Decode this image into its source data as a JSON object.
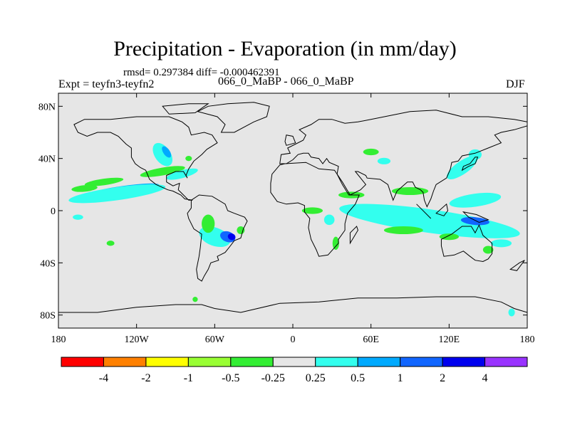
{
  "title": "Precipitation - Evaporation (in mm/day)",
  "stats": "rmsd= 0.297384 diff= -0.000462391",
  "expt": "Expt = teyfn3-teyfn2",
  "case": "066_0_MaBP - 066_0_MaBP",
  "season": "DJF",
  "map": {
    "lon_range": [
      -180,
      180
    ],
    "lat_range": [
      -90,
      90
    ],
    "background": "#e6e6e6",
    "land_outline_color": "#000000",
    "x_ticks": [
      {
        "value": -180,
        "label": "180"
      },
      {
        "value": -120,
        "label": "120W"
      },
      {
        "value": -60,
        "label": "60W"
      },
      {
        "value": 0,
        "label": "0"
      },
      {
        "value": 60,
        "label": "60E"
      },
      {
        "value": 120,
        "label": "120E"
      },
      {
        "value": 180,
        "label": "180"
      }
    ],
    "y_ticks": [
      {
        "value": 80,
        "label": "80N"
      },
      {
        "value": 40,
        "label": "40N"
      },
      {
        "value": 0,
        "label": "0"
      },
      {
        "value": -40,
        "label": "40S"
      },
      {
        "value": -80,
        "label": "80S"
      }
    ]
  },
  "colorbar": {
    "colors": [
      "#ff0000",
      "#ff8000",
      "#ffff00",
      "#99ff33",
      "#33ee33",
      "#e6e6e6",
      "#33ffee",
      "#00aaff",
      "#1166ff",
      "#0000ee",
      "#9933ff"
    ],
    "labels": [
      "-4",
      "-2",
      "-1",
      "-0.5",
      "-0.25",
      "0.25",
      "0.5",
      "1",
      "2",
      "4"
    ]
  },
  "features": [
    {
      "c": "#33ffee",
      "lon": -100,
      "lat": 43,
      "w": 12,
      "h": 20,
      "r": -35
    },
    {
      "c": "#00aaff",
      "lon": -97,
      "lat": 45,
      "w": 5,
      "h": 10,
      "r": -35
    },
    {
      "c": "#33ee33",
      "lon": -145,
      "lat": 22,
      "w": 30,
      "h": 5,
      "r": -8
    },
    {
      "c": "#00aaff",
      "lon": -130,
      "lat": 16,
      "w": 55,
      "h": 6,
      "r": -8
    },
    {
      "c": "#33ffee",
      "lon": -135,
      "lat": 13,
      "w": 75,
      "h": 10,
      "r": -8
    },
    {
      "c": "#33ee33",
      "lon": -160,
      "lat": 17,
      "w": 20,
      "h": 5,
      "r": -5
    },
    {
      "c": "#33ee33",
      "lon": -100,
      "lat": 30,
      "w": 35,
      "h": 6,
      "r": -10
    },
    {
      "c": "#33ffee",
      "lon": -85,
      "lat": 28,
      "w": 25,
      "h": 6,
      "r": -15
    },
    {
      "c": "#33ee33",
      "lon": -80,
      "lat": 40,
      "w": 5,
      "h": 4,
      "r": 0
    },
    {
      "c": "#33ffee",
      "lon": -60,
      "lat": -20,
      "w": 25,
      "h": 14,
      "r": 20
    },
    {
      "c": "#1166ff",
      "lon": -50,
      "lat": -20,
      "w": 12,
      "h": 8,
      "r": 20
    },
    {
      "c": "#0000ee",
      "lon": -47,
      "lat": -20,
      "w": 6,
      "h": 5,
      "r": 20
    },
    {
      "c": "#33ee33",
      "lon": -65,
      "lat": -10,
      "w": 10,
      "h": 14,
      "r": 0
    },
    {
      "c": "#33ee33",
      "lon": -40,
      "lat": -15,
      "w": 6,
      "h": 6,
      "r": 0
    },
    {
      "c": "#33ee33",
      "lon": 15,
      "lat": 0,
      "w": 16,
      "h": 5,
      "r": 0
    },
    {
      "c": "#33ffee",
      "lon": 28,
      "lat": -7,
      "w": 8,
      "h": 8,
      "r": 0
    },
    {
      "c": "#33ee33",
      "lon": 33,
      "lat": -25,
      "w": 5,
      "h": 10,
      "r": 0
    },
    {
      "c": "#00aaff",
      "lon": 100,
      "lat": -5,
      "w": 110,
      "h": 10,
      "r": 8
    },
    {
      "c": "#33ffee",
      "lon": 105,
      "lat": -8,
      "w": 140,
      "h": 18,
      "r": 8
    },
    {
      "c": "#1166ff",
      "lon": 140,
      "lat": -8,
      "w": 22,
      "h": 6,
      "r": 5
    },
    {
      "c": "#33ffee",
      "lon": 140,
      "lat": 8,
      "w": 40,
      "h": 10,
      "r": -8
    },
    {
      "c": "#33ee33",
      "lon": 90,
      "lat": 15,
      "w": 28,
      "h": 6,
      "r": 0
    },
    {
      "c": "#33ee33",
      "lon": 45,
      "lat": 12,
      "w": 20,
      "h": 5,
      "r": 0
    },
    {
      "c": "#33ee33",
      "lon": 85,
      "lat": -15,
      "w": 30,
      "h": 6,
      "r": 0
    },
    {
      "c": "#33ffee",
      "lon": 130,
      "lat": 33,
      "w": 28,
      "h": 10,
      "r": -35
    },
    {
      "c": "#33ffee",
      "lon": 140,
      "lat": 43,
      "w": 10,
      "h": 8,
      "r": 0
    },
    {
      "c": "#33ffee",
      "lon": 160,
      "lat": -25,
      "w": 16,
      "h": 6,
      "r": 0
    },
    {
      "c": "#33ee33",
      "lon": 120,
      "lat": -20,
      "w": 15,
      "h": 5,
      "r": 0
    },
    {
      "c": "#33ee33",
      "lon": 60,
      "lat": 45,
      "w": 12,
      "h": 5,
      "r": 0
    },
    {
      "c": "#33ffee",
      "lon": 70,
      "lat": 38,
      "w": 10,
      "h": 5,
      "r": 0
    },
    {
      "c": "#33ee33",
      "lon": 150,
      "lat": -30,
      "w": 8,
      "h": 6,
      "r": 0
    },
    {
      "c": "#33ffee",
      "lon": 168,
      "lat": -78,
      "w": 5,
      "h": 6,
      "r": 0
    },
    {
      "c": "#33ee33",
      "lon": -75,
      "lat": -68,
      "w": 4,
      "h": 4,
      "r": 0
    },
    {
      "c": "#33ee33",
      "lon": -140,
      "lat": -25,
      "w": 6,
      "h": 4,
      "r": 0
    },
    {
      "c": "#33ffee",
      "lon": -165,
      "lat": -5,
      "w": 8,
      "h": 4,
      "r": 0
    }
  ],
  "land": [
    [
      [
        -168,
        66
      ],
      [
        -160,
        70
      ],
      [
        -140,
        70
      ],
      [
        -120,
        72
      ],
      [
        -95,
        72
      ],
      [
        -85,
        68
      ],
      [
        -80,
        64
      ],
      [
        -78,
        58
      ],
      [
        -68,
        60
      ],
      [
        -62,
        58
      ],
      [
        -58,
        52
      ],
      [
        -66,
        47
      ],
      [
        -70,
        43
      ],
      [
        -76,
        38
      ],
      [
        -80,
        32
      ],
      [
        -82,
        27
      ],
      [
        -81,
        25
      ],
      [
        -84,
        30
      ],
      [
        -90,
        30
      ],
      [
        -97,
        27
      ],
      [
        -97,
        22
      ],
      [
        -92,
        19
      ],
      [
        -87,
        21
      ],
      [
        -88,
        16
      ],
      [
        -84,
        12
      ],
      [
        -80,
        8
      ],
      [
        -77,
        8
      ],
      [
        -83,
        9
      ],
      [
        -86,
        12
      ],
      [
        -92,
        15
      ],
      [
        -96,
        16
      ],
      [
        -105,
        20
      ],
      [
        -110,
        24
      ],
      [
        -113,
        31
      ],
      [
        -117,
        33
      ],
      [
        -121,
        36
      ],
      [
        -124,
        41
      ],
      [
        -124,
        48
      ],
      [
        -128,
        51
      ],
      [
        -134,
        57
      ],
      [
        -140,
        60
      ],
      [
        -150,
        60
      ],
      [
        -158,
        57
      ],
      [
        -165,
        60
      ]
    ],
    [
      [
        -78,
        8
      ],
      [
        -72,
        12
      ],
      [
        -62,
        11
      ],
      [
        -52,
        5
      ],
      [
        -50,
        0
      ],
      [
        -45,
        -2
      ],
      [
        -37,
        -5
      ],
      [
        -35,
        -8
      ],
      [
        -38,
        -14
      ],
      [
        -40,
        -21
      ],
      [
        -45,
        -23
      ],
      [
        -48,
        -27
      ],
      [
        -52,
        -32
      ],
      [
        -58,
        -35
      ],
      [
        -57,
        -38
      ],
      [
        -63,
        -40
      ],
      [
        -65,
        -45
      ],
      [
        -68,
        -50
      ],
      [
        -70,
        -54
      ],
      [
        -73,
        -52
      ],
      [
        -74,
        -45
      ],
      [
        -72,
        -35
      ],
      [
        -71,
        -28
      ],
      [
        -70,
        -18
      ],
      [
        -76,
        -14
      ],
      [
        -80,
        -6
      ],
      [
        -81,
        -2
      ],
      [
        -78,
        2
      ]
    ],
    [
      [
        -17,
        21
      ],
      [
        -16,
        28
      ],
      [
        -10,
        35
      ],
      [
        -6,
        36
      ],
      [
        10,
        37
      ],
      [
        20,
        32
      ],
      [
        32,
        31
      ],
      [
        34,
        28
      ],
      [
        38,
        20
      ],
      [
        43,
        12
      ],
      [
        51,
        12
      ],
      [
        48,
        5
      ],
      [
        42,
        -2
      ],
      [
        40,
        -10
      ],
      [
        40,
        -15
      ],
      [
        35,
        -22
      ],
      [
        35,
        -25
      ],
      [
        27,
        -34
      ],
      [
        20,
        -35
      ],
      [
        18,
        -30
      ],
      [
        14,
        -22
      ],
      [
        12,
        -13
      ],
      [
        13,
        -6
      ],
      [
        9,
        -1
      ],
      [
        9,
        4
      ],
      [
        4,
        6
      ],
      [
        -5,
        5
      ],
      [
        -12,
        7
      ],
      [
        -17,
        14
      ]
    ],
    [
      [
        -10,
        36
      ],
      [
        -9,
        43
      ],
      [
        -2,
        44
      ],
      [
        -4,
        48
      ],
      [
        2,
        51
      ],
      [
        8,
        54
      ],
      [
        10,
        58
      ],
      [
        5,
        62
      ],
      [
        14,
        66
      ],
      [
        20,
        70
      ],
      [
        30,
        70
      ],
      [
        40,
        67
      ],
      [
        50,
        68
      ],
      [
        60,
        70
      ],
      [
        75,
        73
      ],
      [
        90,
        76
      ],
      [
        110,
        77
      ],
      [
        130,
        72
      ],
      [
        150,
        72
      ],
      [
        170,
        70
      ],
      [
        180,
        68
      ],
      [
        180,
        65
      ],
      [
        170,
        62
      ],
      [
        160,
        60
      ],
      [
        155,
        58
      ],
      [
        160,
        52
      ],
      [
        150,
        48
      ],
      [
        140,
        44
      ],
      [
        130,
        42
      ],
      [
        127,
        38
      ],
      [
        122,
        37
      ],
      [
        121,
        32
      ],
      [
        118,
        25
      ],
      [
        110,
        20
      ],
      [
        108,
        15
      ],
      [
        106,
        9
      ],
      [
        103,
        3
      ],
      [
        101,
        8
      ],
      [
        100,
        14
      ],
      [
        98,
        16
      ],
      [
        94,
        18
      ],
      [
        92,
        22
      ],
      [
        88,
        22
      ],
      [
        80,
        15
      ],
      [
        77,
        8
      ],
      [
        73,
        20
      ],
      [
        67,
        24
      ],
      [
        57,
        25
      ],
      [
        56,
        27
      ],
      [
        50,
        30
      ],
      [
        48,
        30
      ],
      [
        56,
        20
      ],
      [
        52,
        16
      ],
      [
        44,
        12
      ],
      [
        38,
        22
      ],
      [
        34,
        28
      ],
      [
        35,
        34
      ],
      [
        28,
        37
      ],
      [
        26,
        40
      ],
      [
        23,
        36
      ],
      [
        20,
        40
      ],
      [
        14,
        41
      ],
      [
        12,
        44
      ],
      [
        8,
        44
      ],
      [
        4,
        43
      ],
      [
        0,
        39
      ],
      [
        -5,
        36
      ]
    ],
    [
      [
        114,
        -22
      ],
      [
        122,
        -18
      ],
      [
        130,
        -12
      ],
      [
        137,
        -12
      ],
      [
        140,
        -17
      ],
      [
        143,
        -11
      ],
      [
        146,
        -19
      ],
      [
        153,
        -25
      ],
      [
        153,
        -33
      ],
      [
        150,
        -37
      ],
      [
        146,
        -39
      ],
      [
        140,
        -38
      ],
      [
        136,
        -35
      ],
      [
        131,
        -31
      ],
      [
        124,
        -34
      ],
      [
        116,
        -35
      ],
      [
        114,
        -27
      ]
    ],
    [
      [
        -180,
        -78
      ],
      [
        -150,
        -78
      ],
      [
        -120,
        -74
      ],
      [
        -90,
        -72
      ],
      [
        -70,
        -72
      ],
      [
        -60,
        -75
      ],
      [
        -40,
        -78
      ],
      [
        -10,
        -71
      ],
      [
        20,
        -70
      ],
      [
        50,
        -67
      ],
      [
        80,
        -67
      ],
      [
        110,
        -66
      ],
      [
        140,
        -66
      ],
      [
        160,
        -70
      ],
      [
        170,
        -75
      ],
      [
        180,
        -78
      ],
      [
        180,
        -90
      ],
      [
        -180,
        -90
      ]
    ],
    [
      [
        -55,
        60
      ],
      [
        -45,
        60
      ],
      [
        -30,
        68
      ],
      [
        -20,
        72
      ],
      [
        -18,
        80
      ],
      [
        -30,
        83
      ],
      [
        -50,
        82
      ],
      [
        -65,
        80
      ],
      [
        -73,
        76
      ],
      [
        -58,
        72
      ],
      [
        -52,
        66
      ]
    ],
    [
      [
        -5,
        50
      ],
      [
        2,
        52
      ],
      [
        0,
        57
      ],
      [
        -5,
        58
      ],
      [
        -6,
        53
      ]
    ],
    [
      [
        130,
        31
      ],
      [
        135,
        34
      ],
      [
        140,
        36
      ],
      [
        142,
        41
      ],
      [
        140,
        41
      ],
      [
        136,
        36
      ],
      [
        131,
        34
      ]
    ],
    [
      [
        95,
        5
      ],
      [
        105,
        -5
      ],
      [
        106,
        -6
      ],
      [
        98,
        2
      ]
    ],
    [
      [
        110,
        -2
      ],
      [
        118,
        5
      ],
      [
        119,
        0
      ],
      [
        116,
        -4
      ]
    ],
    [
      [
        131,
        -1
      ],
      [
        141,
        -3
      ],
      [
        150,
        -7
      ],
      [
        143,
        -9
      ],
      [
        135,
        -5
      ]
    ],
    [
      [
        44,
        -25
      ],
      [
        50,
        -15
      ],
      [
        49,
        -12
      ],
      [
        44,
        -17
      ]
    ],
    [
      [
        167,
        -45
      ],
      [
        174,
        -40
      ],
      [
        178,
        -38
      ],
      [
        172,
        -46
      ]
    ],
    [
      [
        -100,
        80
      ],
      [
        -80,
        82
      ],
      [
        -65,
        82
      ],
      [
        -75,
        75
      ],
      [
        -95,
        74
      ]
    ]
  ]
}
